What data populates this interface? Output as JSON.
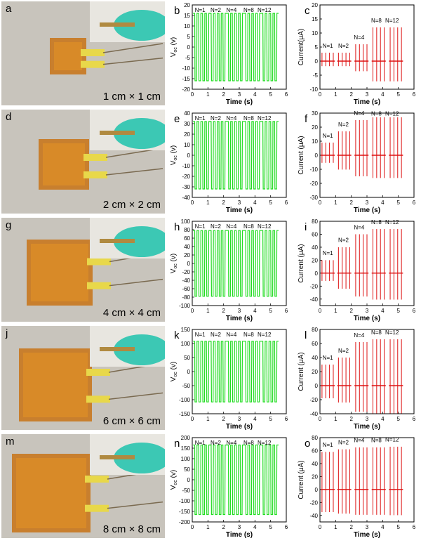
{
  "rows": [
    {
      "photo_letter": "a",
      "size_label": "1 cm × 1 cm",
      "voltage_letter": "b",
      "current_letter": "c",
      "voltage_ylim": [
        -20,
        20
      ],
      "voltage_ticks": [
        -20,
        -15,
        -10,
        -5,
        0,
        5,
        10,
        15,
        20
      ],
      "voltage_amp": 16,
      "current_ylim": [
        -10,
        20
      ],
      "current_ticks": [
        -10,
        -5,
        0,
        5,
        10,
        15,
        20
      ],
      "current_peaks": [
        3,
        3,
        6,
        12,
        12
      ],
      "current_ylabel": "Current(μA)"
    },
    {
      "photo_letter": "d",
      "size_label": "2 cm × 2 cm",
      "voltage_letter": "e",
      "current_letter": "f",
      "voltage_ylim": [
        -40,
        40
      ],
      "voltage_ticks": [
        -40,
        -30,
        -20,
        -10,
        0,
        10,
        20,
        30,
        40
      ],
      "voltage_amp": 32,
      "current_ylim": [
        -30,
        30
      ],
      "current_ticks": [
        -30,
        -20,
        -10,
        0,
        10,
        20,
        30
      ],
      "current_peaks": [
        9,
        17,
        25,
        27,
        27
      ],
      "current_ylabel": "Current (μA)"
    },
    {
      "photo_letter": "g",
      "size_label": "4 cm × 4 cm",
      "voltage_letter": "h",
      "current_letter": "i",
      "voltage_ylim": [
        -100,
        100
      ],
      "voltage_ticks": [
        -100,
        -80,
        -60,
        -40,
        -20,
        0,
        20,
        40,
        60,
        80,
        100
      ],
      "voltage_amp": 78,
      "current_ylim": [
        -50,
        80
      ],
      "current_ticks": [
        -40,
        -20,
        0,
        20,
        40,
        60,
        80
      ],
      "current_peaks": [
        20,
        40,
        60,
        68,
        68
      ],
      "current_ylabel": "Current (μA)"
    },
    {
      "photo_letter": "j",
      "size_label": "6 cm × 6 cm",
      "voltage_letter": "k",
      "current_letter": "l",
      "voltage_ylim": [
        -150,
        150
      ],
      "voltage_ticks": [
        -150,
        -100,
        -50,
        0,
        50,
        100,
        150
      ],
      "voltage_amp": 108,
      "current_ylim": [
        -40,
        80
      ],
      "current_ticks": [
        -40,
        -20,
        0,
        20,
        40,
        60,
        80
      ],
      "current_peaks": [
        30,
        40,
        62,
        66,
        66
      ],
      "current_ylabel": "Current (μA)"
    },
    {
      "photo_letter": "m",
      "size_label": "8 cm × 8 cm",
      "voltage_letter": "n",
      "current_letter": "o",
      "voltage_ylim": [
        -200,
        200
      ],
      "voltage_ticks": [
        -200,
        -150,
        -100,
        -50,
        0,
        50,
        100,
        150,
        200
      ],
      "voltage_amp": 165,
      "current_ylim": [
        -50,
        80
      ],
      "current_ticks": [
        -40,
        -20,
        0,
        20,
        40,
        60,
        80
      ],
      "current_peaks": [
        58,
        62,
        65,
        65,
        66
      ],
      "current_ylabel": "Current (μA)"
    }
  ],
  "voltage_ylabel": "V",
  "voltage_ylabel_sub": "oc",
  "voltage_ylabel_unit": " (v)",
  "xlabel": "Time (s)",
  "x_ticks": [
    0,
    1,
    2,
    3,
    4,
    5,
    6
  ],
  "xlim": [
    0,
    6
  ],
  "group_labels": [
    "N=1",
    "N=2",
    "N=4",
    "N=8",
    "N=12"
  ],
  "group_centers": [
    0.5,
    1.5,
    2.5,
    3.6,
    4.6
  ],
  "voltage_color": "#22dd22",
  "current_color": "#dd1111",
  "photo_colors": {
    "background": "#c8c4bc",
    "kapton": "#c8781e",
    "foil": "#d88a28",
    "glove": "#3cc8b4",
    "tape": "#e8d84a"
  },
  "chart_data": [
    {
      "type": "line",
      "title": "",
      "xlabel": "Time (s)",
      "ylabel": "Voc (v)",
      "xlim": [
        0,
        6
      ],
      "ylim": [
        -20,
        20
      ],
      "series": [
        {
          "values_summary": "square-like oscillation ±16 V, groups N=1,2,4,8,12"
        }
      ]
    }
  ]
}
